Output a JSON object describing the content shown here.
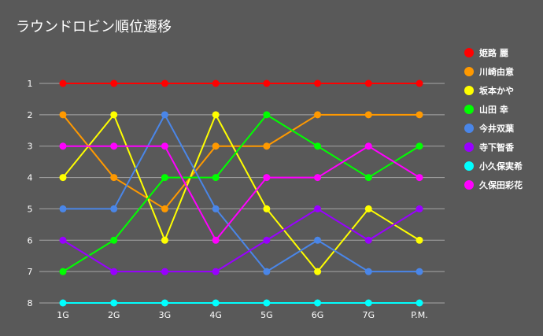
{
  "chart_data": {
    "type": "line",
    "title": "ラウンドロビン順位遷移",
    "xlabel": "",
    "ylabel": "",
    "categories": [
      "1G",
      "2G",
      "3G",
      "4G",
      "5G",
      "6G",
      "7G",
      "P.M."
    ],
    "y_ticks": [
      1,
      2,
      3,
      4,
      5,
      6,
      7,
      8
    ],
    "ylim": [
      1,
      8
    ],
    "y_inverted": true,
    "grid": true,
    "legend_position": "right",
    "background": "#595959",
    "series": [
      {
        "name": "姫路 麗",
        "color": "#ff0000",
        "values": [
          1,
          1,
          1,
          1,
          1,
          1,
          1,
          1
        ]
      },
      {
        "name": "川崎由意",
        "color": "#ff9900",
        "values": [
          2,
          4,
          5,
          3,
          3,
          2,
          2,
          2
        ]
      },
      {
        "name": "坂本かや",
        "color": "#ffff00",
        "values": [
          4,
          2,
          6,
          2,
          5,
          7,
          5,
          6
        ]
      },
      {
        "name": "山田 幸",
        "color": "#00ff00",
        "values": [
          7,
          6,
          4,
          4,
          2,
          3,
          4,
          3
        ]
      },
      {
        "name": "今井双葉",
        "color": "#4a86e8",
        "values": [
          5,
          5,
          2,
          5,
          7,
          6,
          7,
          7
        ]
      },
      {
        "name": "寺下智香",
        "color": "#9900ff",
        "values": [
          6,
          7,
          7,
          7,
          6,
          5,
          6,
          5
        ]
      },
      {
        "name": "小久保実希",
        "color": "#00ffff",
        "values": [
          8,
          8,
          8,
          8,
          8,
          8,
          8,
          8
        ]
      },
      {
        "name": "久保田彩花",
        "color": "#ff00ff",
        "values": [
          3,
          3,
          3,
          6,
          4,
          4,
          3,
          4
        ]
      }
    ]
  }
}
